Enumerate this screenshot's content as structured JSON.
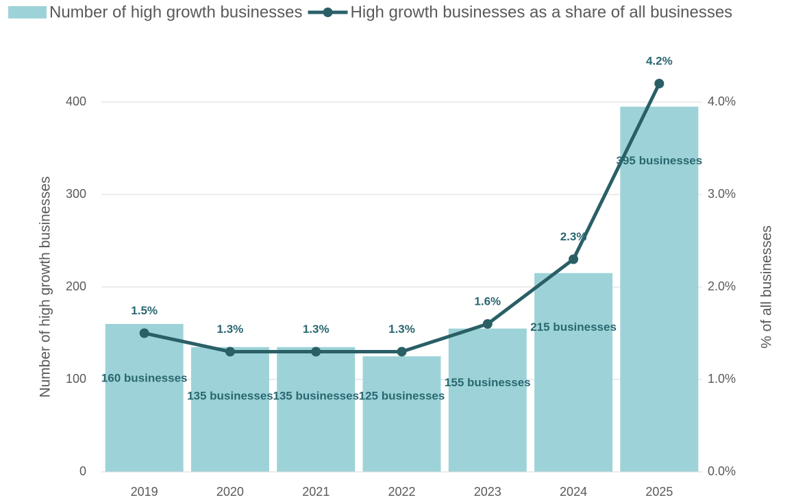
{
  "chart_data": {
    "type": "bar_line",
    "legend_position": "top",
    "ylabel": "Number of high growth businesses",
    "y2label": "% of all businesses",
    "categories": [
      "2019",
      "2020",
      "2021",
      "2022",
      "2023",
      "2024",
      "2025"
    ],
    "ylim": [
      0,
      420
    ],
    "yticks": [
      0,
      100,
      200,
      300,
      400
    ],
    "y2lim": [
      0,
      4.2
    ],
    "y2ticks": [
      {
        "value": 0,
        "label": "0.0%"
      },
      {
        "value": 1,
        "label": "1.0%"
      },
      {
        "value": 2,
        "label": "2.0%"
      },
      {
        "value": 3,
        "label": "3.0%"
      },
      {
        "value": 4,
        "label": "4.0%"
      }
    ],
    "grid": true,
    "series": [
      {
        "name": "Number of high growth businesses",
        "type": "bar",
        "color": "#9dd3d8",
        "values": [
          160,
          135,
          135,
          125,
          155,
          215,
          395
        ],
        "value_labels": [
          "160 businesses",
          "135 businesses",
          "135 businesses",
          "125 businesses",
          "155 businesses",
          "215 businesses",
          "395 businesses"
        ]
      },
      {
        "name": "High growth businesses as a share of all businesses",
        "type": "line",
        "axis": "y2",
        "color": "#2a5f66",
        "values": [
          1.5,
          1.3,
          1.3,
          1.3,
          1.6,
          2.3,
          4.2
        ],
        "value_labels": [
          "1.5%",
          "1.3%",
          "1.3%",
          "1.3%",
          "1.6%",
          "2.3%",
          "4.2%"
        ]
      }
    ]
  }
}
